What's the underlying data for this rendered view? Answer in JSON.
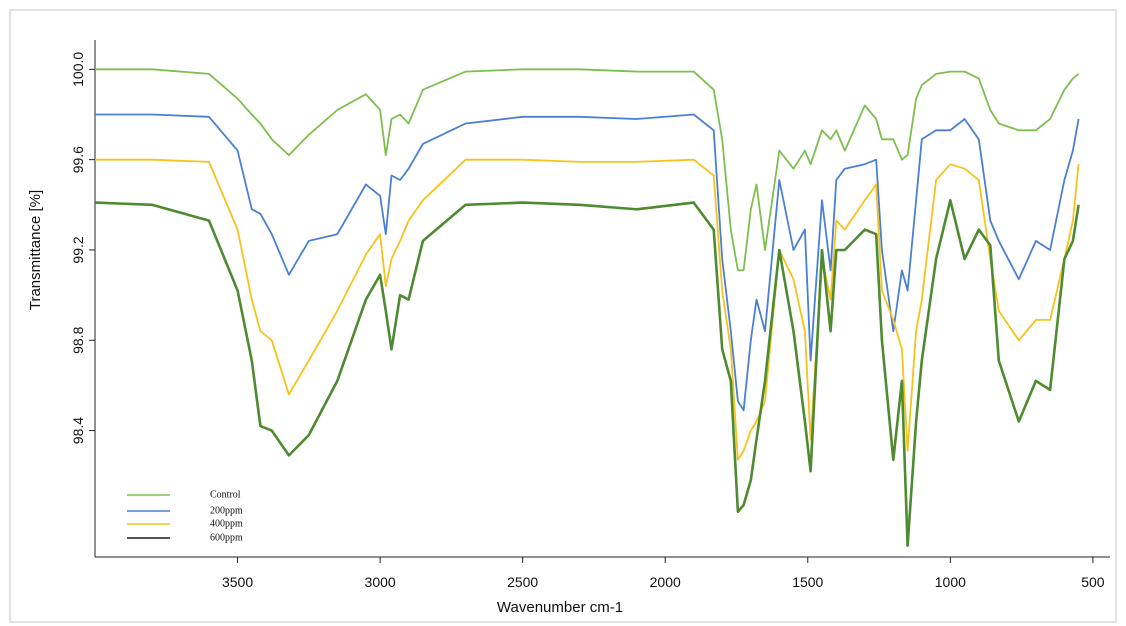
{
  "chart_data": {
    "type": "line",
    "y_label": "Transmittance [%]",
    "x_label": "Wavenumber cm-1",
    "xlim": [
      4000,
      440
    ],
    "xticks": [
      3500,
      3000,
      2500,
      2000,
      1500,
      1000,
      500
    ],
    "ylim": [
      97.84,
      100.13
    ],
    "yticks": [
      98.4,
      98.8,
      99.2,
      99.6,
      {
        "value": 100,
        "label": "100.0"
      }
    ],
    "x": [
      4000,
      3800,
      3600,
      3500,
      3450,
      3420,
      3380,
      3320,
      3250,
      3150,
      3050,
      3000,
      2980,
      2960,
      2930,
      2900,
      2850,
      2700,
      2500,
      2300,
      2100,
      1900,
      1830,
      1800,
      1770,
      1745,
      1725,
      1700,
      1680,
      1650,
      1600,
      1550,
      1510,
      1490,
      1450,
      1420,
      1400,
      1370,
      1300,
      1260,
      1240,
      1200,
      1170,
      1150,
      1120,
      1100,
      1050,
      1000,
      950,
      900,
      860,
      830,
      760,
      700,
      650,
      600,
      570,
      550
    ],
    "series": [
      {
        "name": "Control",
        "color": "#7dbf4f",
        "legend_color": "#7dbf4f",
        "values": [
          100.0,
          100.0,
          99.98,
          99.87,
          99.8,
          99.76,
          99.69,
          99.62,
          99.71,
          99.82,
          99.89,
          99.82,
          99.62,
          99.78,
          99.8,
          99.76,
          99.91,
          99.99,
          100.0,
          100.0,
          99.99,
          99.99,
          99.91,
          99.69,
          99.29,
          99.11,
          99.11,
          99.38,
          99.49,
          99.2,
          99.64,
          99.56,
          99.64,
          99.58,
          99.73,
          99.69,
          99.73,
          99.64,
          99.84,
          99.78,
          99.69,
          99.69,
          99.6,
          99.62,
          99.87,
          99.93,
          99.98,
          99.99,
          99.99,
          99.96,
          99.82,
          99.76,
          99.73,
          99.73,
          99.78,
          99.91,
          99.96,
          99.98
        ]
      },
      {
        "name": "200ppm",
        "color": "#4a7fd4",
        "legend_color": "#4a7fd4",
        "values": [
          99.8,
          99.8,
          99.79,
          99.64,
          99.38,
          99.36,
          99.27,
          99.09,
          99.24,
          99.27,
          99.49,
          99.44,
          99.27,
          99.53,
          99.51,
          99.56,
          99.67,
          99.76,
          99.79,
          99.79,
          99.78,
          99.8,
          99.73,
          99.16,
          98.84,
          98.53,
          98.49,
          98.8,
          98.98,
          98.84,
          99.51,
          99.2,
          99.29,
          98.71,
          99.42,
          99.11,
          99.51,
          99.56,
          99.58,
          99.6,
          99.2,
          98.84,
          99.11,
          99.02,
          99.42,
          99.69,
          99.73,
          99.73,
          99.78,
          99.69,
          99.33,
          99.24,
          99.07,
          99.24,
          99.2,
          99.51,
          99.64,
          99.78
        ]
      },
      {
        "name": "400ppm",
        "color": "#f7c21c",
        "legend_color": "#f7c21c",
        "values": [
          99.6,
          99.6,
          99.59,
          99.29,
          98.98,
          98.84,
          98.8,
          98.56,
          98.71,
          98.93,
          99.18,
          99.27,
          99.04,
          99.16,
          99.24,
          99.33,
          99.42,
          99.6,
          99.6,
          99.59,
          99.59,
          99.6,
          99.53,
          99.02,
          98.76,
          98.27,
          98.31,
          98.4,
          98.44,
          98.53,
          99.2,
          99.07,
          98.84,
          98.36,
          99.16,
          98.98,
          99.33,
          99.29,
          99.42,
          99.49,
          99.02,
          98.89,
          98.76,
          98.31,
          98.84,
          98.98,
          99.51,
          99.58,
          99.56,
          99.51,
          99.16,
          98.93,
          98.8,
          98.89,
          98.89,
          99.16,
          99.33,
          99.58
        ]
      },
      {
        "name": "600ppm",
        "color": "#4e8a2f",
        "legend_color": "#1a1a1a",
        "values": [
          99.41,
          99.4,
          99.33,
          99.02,
          98.71,
          98.42,
          98.4,
          98.29,
          98.38,
          98.62,
          98.98,
          99.09,
          98.93,
          98.76,
          99.0,
          98.98,
          99.24,
          99.4,
          99.41,
          99.4,
          99.38,
          99.41,
          99.29,
          98.76,
          98.62,
          98.04,
          98.07,
          98.18,
          98.36,
          98.62,
          99.2,
          98.84,
          98.44,
          98.22,
          99.2,
          98.84,
          99.2,
          99.2,
          99.29,
          99.27,
          98.8,
          98.27,
          98.62,
          97.89,
          98.44,
          98.71,
          99.16,
          99.42,
          99.16,
          99.29,
          99.22,
          98.71,
          98.44,
          98.62,
          98.58,
          99.16,
          99.24,
          99.4
        ]
      }
    ]
  }
}
